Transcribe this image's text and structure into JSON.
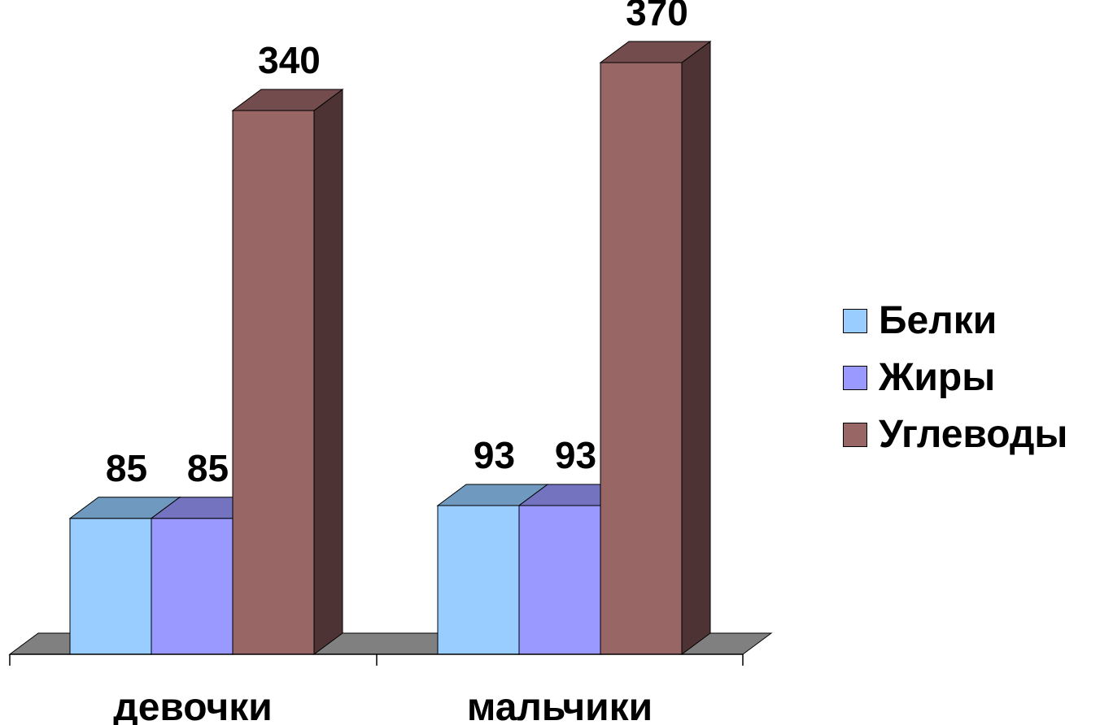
{
  "chart_data": {
    "type": "bar",
    "categories": [
      "девочки",
      "мальчики"
    ],
    "series": [
      {
        "name": "Белки",
        "values": [
          85,
          93
        ],
        "color": "#99ccff",
        "top": "#7099c0",
        "side": "#5f86ad"
      },
      {
        "name": "Жиры",
        "values": [
          85,
          93
        ],
        "color": "#9999ff",
        "top": "#7373bf",
        "side": "#6565aa"
      },
      {
        "name": "Углеводы",
        "values": [
          340,
          370
        ],
        "color": "#996666",
        "top": "#734d4d",
        "side": "#4d3333"
      }
    ],
    "title": "",
    "xlabel": "",
    "ylabel": "",
    "ylim": [
      0,
      370
    ],
    "three_d": true,
    "legend_position": "right",
    "floor_color": "#808080",
    "data_labels": true
  }
}
